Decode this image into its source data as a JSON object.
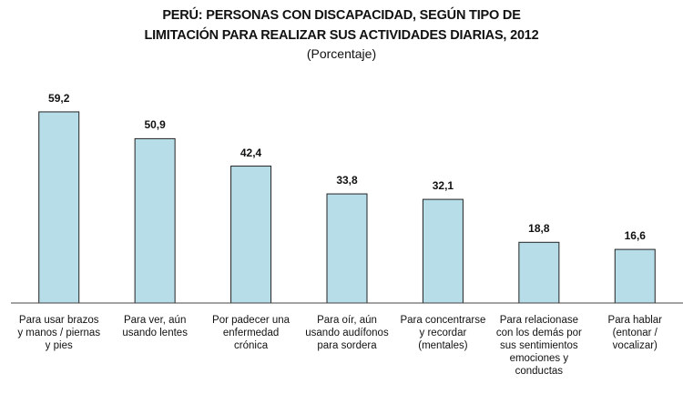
{
  "chart_data": {
    "type": "bar",
    "title": "PERÚ: PERSONAS CON DISCAPACIDAD, SEGÚN TIPO DE\nLIMITACIÓN PARA REALIZAR SUS ACTIVIDADES DIARIAS, 2012",
    "subtitle": "(Porcentaje)",
    "categories": [
      "Para usar  brazos\ny manos / piernas\ny pies",
      "Para ver, aún\nusando lentes",
      "Por padecer una\nenfermedad\ncrónica",
      "Para oír, aún\nusando audífonos\npara sordera",
      "Para concentrarse\ny recordar\n(mentales)",
      "Para relacionase\ncon los demás por\nsus sentimientos\nemociones y\nconductas",
      "Para hablar\n(entonar /\nvocalizar)"
    ],
    "values": [
      59.2,
      50.9,
      42.4,
      33.8,
      32.1,
      18.8,
      16.6
    ],
    "value_labels": [
      "59,2",
      "50,9",
      "42,4",
      "33,8",
      "32,1",
      "18,8",
      "16,6"
    ],
    "color": "#b7dde8",
    "ylim": [
      0,
      62
    ]
  }
}
